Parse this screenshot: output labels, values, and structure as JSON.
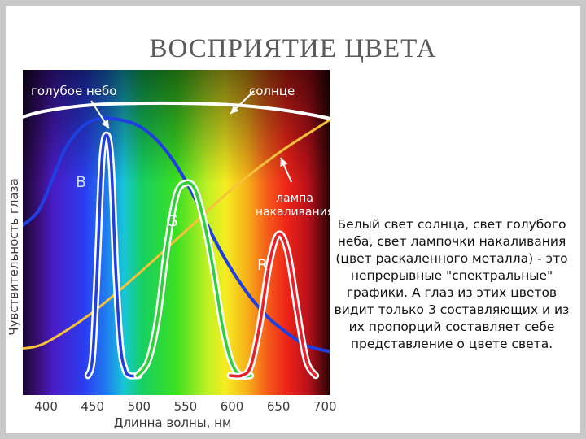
{
  "slide": {
    "title": "ВОСПРИЯТИЕ ЦВЕТА",
    "caption": "Белый свет солнца, свет голубого неба, свет лампочки накаливания (цвет раскаленного металла) - это непрерывные \"спектральные\" графики. А глаз из этих цветов видит только 3 составляющих и из их пропорций составляет себе представление о цвете света."
  },
  "chart_data": {
    "type": "line",
    "xlabel": "Длинна волны, нм",
    "ylabel": "Чувствительность глаза",
    "xlim": [
      375,
      705
    ],
    "ylim": [
      0,
      1
    ],
    "x_ticks": [
      400,
      450,
      500,
      550,
      600,
      650,
      700
    ],
    "background": "visible spectrum (violet → red)",
    "series": [
      {
        "name": "солнце",
        "color": "#ffffff",
        "x": [
          375,
          400,
          450,
          500,
          550,
          600,
          650,
          680,
          705
        ],
        "y": [
          0.86,
          0.88,
          0.9,
          0.905,
          0.905,
          0.9,
          0.885,
          0.87,
          0.855
        ]
      },
      {
        "name": "голубое небо",
        "color": "#1f3fe0",
        "x": [
          375,
          390,
          400,
          420,
          440,
          460,
          480,
          500,
          520,
          540,
          560,
          580,
          600,
          620,
          640,
          660,
          680,
          705
        ],
        "y": [
          0.5,
          0.54,
          0.6,
          0.75,
          0.83,
          0.855,
          0.85,
          0.83,
          0.78,
          0.7,
          0.59,
          0.46,
          0.35,
          0.26,
          0.19,
          0.14,
          0.1,
          0.08
        ]
      },
      {
        "name": "лампа накаливания",
        "color": "#f7c23a",
        "x": [
          375,
          400,
          450,
          500,
          550,
          600,
          650,
          700,
          705
        ],
        "y": [
          0.09,
          0.11,
          0.21,
          0.34,
          0.48,
          0.62,
          0.74,
          0.84,
          0.85
        ]
      },
      {
        "name": "B",
        "color": "#1f3fe0",
        "x": [
          445,
          450,
          455,
          460,
          465,
          470,
          475,
          480,
          485,
          490,
          500
        ],
        "y": [
          0.0,
          0.06,
          0.35,
          0.71,
          0.8,
          0.71,
          0.35,
          0.1,
          0.02,
          0.0,
          0.0
        ]
      },
      {
        "name": "G",
        "color": "#2fd03a",
        "x": [
          498,
          510,
          520,
          530,
          540,
          550,
          560,
          570,
          580,
          590,
          600,
          610,
          620
        ],
        "y": [
          0.0,
          0.05,
          0.19,
          0.43,
          0.6,
          0.64,
          0.62,
          0.51,
          0.35,
          0.16,
          0.04,
          0.0,
          0.0
        ]
      },
      {
        "name": "R",
        "color": "#e8202a",
        "x": [
          598,
          610,
          620,
          630,
          640,
          650,
          660,
          670,
          680,
          690
        ],
        "y": [
          0.0,
          0.0,
          0.03,
          0.17,
          0.37,
          0.47,
          0.41,
          0.22,
          0.05,
          0.0
        ]
      }
    ],
    "annotations": [
      {
        "text": "голубое небо",
        "color": "#ffffff"
      },
      {
        "text": "солнце",
        "color": "#ffffff"
      },
      {
        "text": "лампа\nнакаливания",
        "color": "#ffffff"
      },
      {
        "text": "B",
        "color": "#cfe0ff"
      },
      {
        "text": "G",
        "color": "#ffffff"
      },
      {
        "text": "R",
        "color": "#ffffff"
      }
    ]
  }
}
